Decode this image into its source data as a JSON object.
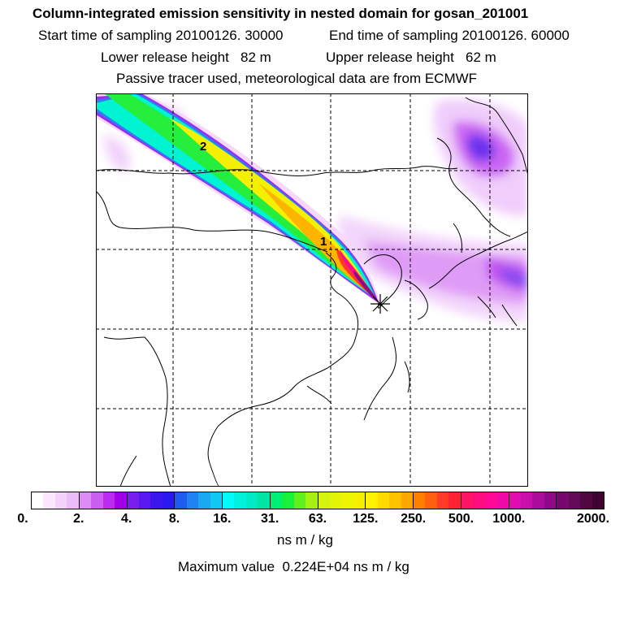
{
  "title": {
    "line1": "Column-integrated emission sensitivity in nested domain for gosan_201001",
    "start": "Start time of sampling 20100126. 30000",
    "end": "End time of sampling 20100126. 60000",
    "lower": "Lower release height   82 m",
    "upper": "Upper release height   62 m",
    "line4": "Passive tracer used, meteorological data are from ECMWF"
  },
  "map": {
    "point_labels": [
      "1",
      "2"
    ],
    "receptor_marker": "star-marker"
  },
  "colorbar": {
    "ticks": [
      "0.",
      "2.",
      "4.",
      "8.",
      "16.",
      "31.",
      "63.",
      "125.",
      "250.",
      "500.",
      "1000.",
      "2000."
    ],
    "units": "ns m / kg",
    "max_label": "Maximum value  0.224E+04 ns m / kg",
    "colors": [
      [
        "#ffffff",
        "#fbe8ff",
        "#f4d2fb",
        "#ebbcf8"
      ],
      [
        "#dc8cf4",
        "#cb5df2",
        "#bb2cf0",
        "#a200ea"
      ],
      [
        "#7a1ef0",
        "#5a19f0",
        "#3c16ee",
        "#2b1af0"
      ],
      [
        "#1e5cf0",
        "#1f83f0",
        "#1ba8f2",
        "#11c8f4"
      ],
      [
        "#00fbfb",
        "#00f2df",
        "#00ebc3",
        "#00e5a6"
      ],
      [
        "#00f077",
        "#18f03a",
        "#60f01e",
        "#a5f011"
      ],
      [
        "#d6f40d",
        "#e3f506",
        "#eef502",
        "#f5f000"
      ],
      [
        "#fff200",
        "#ffdb00",
        "#ffc200",
        "#ffa600"
      ],
      [
        "#ff7f00",
        "#ff5f10",
        "#ff3b28",
        "#ff2235"
      ],
      [
        "#ff1466",
        "#ff0d7e",
        "#ff0a96",
        "#f00aa8"
      ],
      [
        "#e20db0",
        "#c710a9",
        "#aa0c9c",
        "#8e0a89"
      ],
      [
        "#77086f",
        "#640858",
        "#520743",
        "#400431"
      ]
    ]
  }
}
